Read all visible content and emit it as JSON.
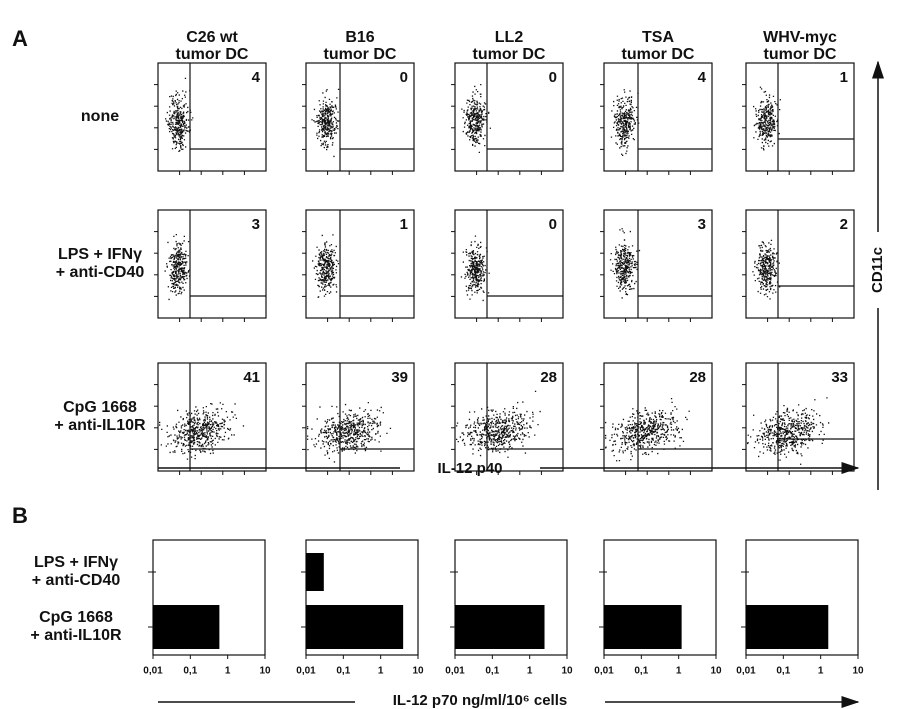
{
  "panel_a": {
    "label": "A",
    "columns": [
      [
        "C26 wt",
        "tumor DC"
      ],
      [
        "B16",
        "tumor DC"
      ],
      [
        "LL2",
        "tumor DC"
      ],
      [
        "TSA",
        "tumor DC"
      ],
      [
        "WHV-myc",
        "tumor DC"
      ]
    ],
    "rows": [
      [
        "none"
      ],
      [
        "LPS + IFNγ",
        "+ anti-CD40"
      ],
      [
        "CpG 1668",
        "+ anti-IL10R"
      ]
    ],
    "percentages": [
      [
        4,
        0,
        0,
        4,
        1
      ],
      [
        3,
        1,
        0,
        3,
        2
      ],
      [
        41,
        39,
        28,
        28,
        33
      ]
    ],
    "x_axis_label": "IL-12 p40",
    "y_axis_label": "CD11c"
  },
  "panel_b": {
    "label": "B",
    "type": "bar",
    "orientation": "horizontal",
    "x_scale": "log",
    "rows": [
      [
        "LPS + IFNγ",
        "+ anti-CD40"
      ],
      [
        "CpG 1668",
        "+ anti-IL10R"
      ]
    ],
    "values": [
      [
        null,
        0.6
      ],
      [
        0.03,
        4
      ],
      [
        null,
        2.5
      ],
      [
        null,
        1.2
      ],
      [
        null,
        1.6
      ]
    ],
    "color": "#000000",
    "xlim": [
      0.01,
      10
    ],
    "xticks": [
      {
        "value": 0.01,
        "label": "0,01"
      },
      {
        "value": 0.1,
        "label": "0,1"
      },
      1,
      10
    ],
    "x_axis_label": "IL-12 p70 ng/ml/10⁶ cells"
  }
}
